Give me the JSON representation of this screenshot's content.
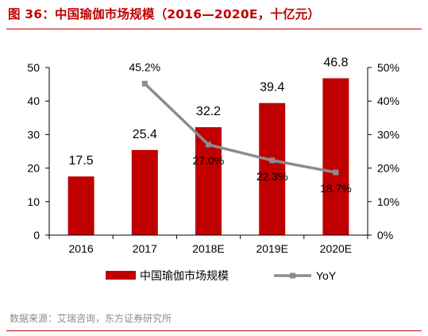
{
  "header": {
    "title": "图 36：中国瑜伽市场规模（2016—2020E，十亿元）"
  },
  "footer": {
    "source": "数据来源：艾瑞咨询，东方证券研究所"
  },
  "chart_data": {
    "type": "bar",
    "categories": [
      "2016",
      "2017",
      "2018E",
      "2019E",
      "2020E"
    ],
    "series": [
      {
        "name": "中国瑜伽市场规模",
        "type": "bar",
        "axis": "left",
        "color": "#c00000",
        "values": [
          17.5,
          25.4,
          32.2,
          39.4,
          46.8
        ],
        "labels": [
          "17.5",
          "25.4",
          "32.2",
          "39.4",
          "46.8"
        ]
      },
      {
        "name": "YoY",
        "type": "line",
        "axis": "right",
        "color": "#8c8c8c",
        "values": [
          null,
          45.2,
          27.0,
          22.3,
          18.7
        ],
        "labels": [
          "",
          "45.2%",
          "27.0%",
          "22.3%",
          "18.7%"
        ]
      }
    ],
    "y_left": {
      "min": 0,
      "max": 50,
      "ticks": [
        "0",
        "10",
        "20",
        "30",
        "40",
        "50"
      ]
    },
    "y_right": {
      "min": 0,
      "max": 50,
      "ticks": [
        "0%",
        "10%",
        "20%",
        "30%",
        "40%",
        "50%"
      ]
    },
    "grid": false,
    "legend": "bottom"
  }
}
